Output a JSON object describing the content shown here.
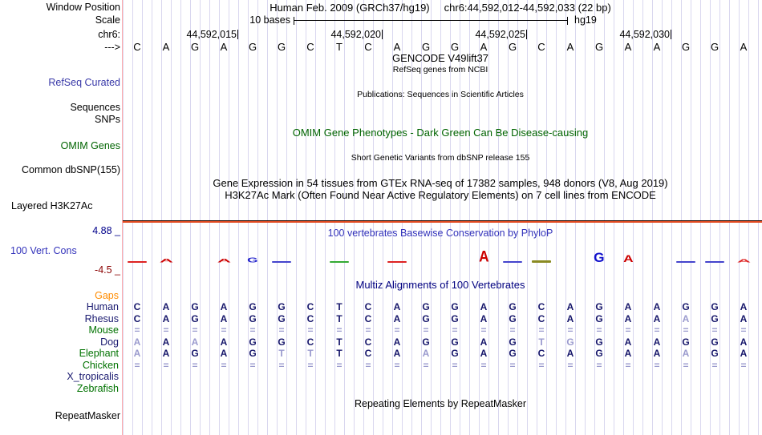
{
  "header": {
    "window_position_label": "Window Position",
    "assembly_title": "Human Feb. 2009 (GRCh37/hg19)",
    "position_title": "chr6:44,592,012-44,592,033 (22 bp)",
    "scale_label": "Scale",
    "scale_text": "10 bases",
    "genome_label": "hg19",
    "chrom_label": "chr6:",
    "coordinates": [
      "44,592,015",
      "44,592,020",
      "44,592,025",
      "44,592,030"
    ],
    "strand_label": "--->"
  },
  "sequence": {
    "bases": [
      "C",
      "A",
      "G",
      "A",
      "G",
      "G",
      "C",
      "T",
      "C",
      "A",
      "G",
      "G",
      "A",
      "G",
      "C",
      "A",
      "G",
      "A",
      "A",
      "G",
      "G",
      "A"
    ]
  },
  "tracks": {
    "gencode": {
      "title": "GENCODE V49lift37",
      "subtitle": "RefSeq genes from NCBI",
      "label": "RefSeq Curated"
    },
    "publications": {
      "title": "Publications: Sequences in Scientific Articles",
      "label_sequences": "Sequences",
      "label_snps": "SNPs"
    },
    "omim": {
      "title": "OMIM Gene Phenotypes - Dark Green Can Be Disease-causing",
      "label": "OMIM Genes"
    },
    "dbsnp": {
      "title": "Short Genetic Variants from dbSNP release 155",
      "label": "Common dbSNP(155)"
    },
    "gtex": {
      "title": "Gene Expression in 54 tissues from GTEx RNA-seq of 17382 samples, 948 donors (V8, Aug 2019)"
    },
    "h3k27ac": {
      "title": "H3K27Ac Mark (Often Found Near Active Regulatory Elements) on 7 cell lines from ENCODE",
      "label": "Layered H3K27Ac"
    },
    "conservation": {
      "title": "100 vertebrates Basewise Conservation by PhyloP",
      "label": "100 Vert. Cons",
      "max_value": "4.88 _",
      "min_value": "-4.5 _",
      "logo": [
        {
          "col": 1,
          "glyph": "bar",
          "color": "#dd2222",
          "h": 2
        },
        {
          "col": 2,
          "glyph": "letter",
          "letter": "A",
          "color": "#cc0000",
          "h": 5
        },
        {
          "col": 4,
          "glyph": "letter",
          "letter": "A",
          "color": "#cc0000",
          "h": 5
        },
        {
          "col": 5,
          "glyph": "letter",
          "letter": "G",
          "color": "#2222cc",
          "h": 6
        },
        {
          "col": 6,
          "glyph": "bar",
          "color": "#4444cc",
          "h": 2
        },
        {
          "col": 8,
          "glyph": "bar",
          "color": "#33aa33",
          "h": 2
        },
        {
          "col": 10,
          "glyph": "bar",
          "color": "#dd2222",
          "h": 2
        },
        {
          "col": 13,
          "glyph": "letter",
          "letter": "A",
          "color": "#cc0000",
          "h": 14
        },
        {
          "col": 14,
          "glyph": "bar",
          "color": "#4444cc",
          "h": 2
        },
        {
          "col": 15,
          "glyph": "bar",
          "color": "#8a8a22",
          "h": 3
        },
        {
          "col": 17,
          "glyph": "letter",
          "letter": "G",
          "color": "#1111cc",
          "h": 12
        },
        {
          "col": 18,
          "glyph": "letter",
          "letter": "A",
          "color": "#cc0000",
          "h": 9
        },
        {
          "col": 20,
          "glyph": "bar",
          "color": "#4444cc",
          "h": 2
        },
        {
          "col": 21,
          "glyph": "bar",
          "color": "#4444cc",
          "h": 2
        },
        {
          "col": 22,
          "glyph": "letter",
          "letter": "A",
          "color": "#dd2222",
          "h": 4
        }
      ]
    },
    "multiz": {
      "title": "Multiz Alignments of 100 Vertebrates",
      "gaps_label": "Gaps",
      "rows": [
        {
          "label": "Gaps",
          "label_color": "orange",
          "cells": [],
          "light": []
        },
        {
          "label": "Human",
          "label_color": "navy",
          "cells": [
            "C",
            "A",
            "G",
            "A",
            "G",
            "G",
            "C",
            "T",
            "C",
            "A",
            "G",
            "G",
            "A",
            "G",
            "C",
            "A",
            "G",
            "A",
            "A",
            "G",
            "G",
            "A"
          ],
          "light": []
        },
        {
          "label": "Rhesus",
          "label_color": "navy",
          "cells": [
            "C",
            "A",
            "G",
            "A",
            "G",
            "G",
            "C",
            "T",
            "C",
            "A",
            "G",
            "G",
            "A",
            "G",
            "C",
            "A",
            "G",
            "A",
            "A",
            "A",
            "G",
            "A"
          ],
          "light": [
            20
          ]
        },
        {
          "label": "Mouse",
          "label_color": "green",
          "cells": [
            "=",
            "=",
            "=",
            "=",
            "=",
            "=",
            "=",
            "=",
            "=",
            "=",
            "=",
            "=",
            "=",
            "=",
            "=",
            "=",
            "=",
            "=",
            "=",
            "=",
            "=",
            "="
          ],
          "light": []
        },
        {
          "label": "Dog",
          "label_color": "navy",
          "cells": [
            "A",
            "A",
            "A",
            "A",
            "G",
            "G",
            "C",
            "T",
            "C",
            "A",
            "G",
            "G",
            "A",
            "G",
            "T",
            "G",
            "G",
            "A",
            "A",
            "G",
            "G",
            "A"
          ],
          "light": [
            1,
            3,
            15,
            16
          ]
        },
        {
          "label": "Elephant",
          "label_color": "green",
          "cells": [
            "A",
            "A",
            "G",
            "A",
            "G",
            "T",
            "T",
            "T",
            "C",
            "A",
            "A",
            "G",
            "A",
            "G",
            "C",
            "A",
            "G",
            "A",
            "A",
            "A",
            "G",
            "A"
          ],
          "light": [
            1,
            6,
            7,
            11,
            20
          ]
        },
        {
          "label": "Chicken",
          "label_color": "green",
          "cells": [
            "=",
            "=",
            "=",
            "=",
            "=",
            "=",
            "=",
            "=",
            "=",
            "=",
            "=",
            "=",
            "=",
            "=",
            "=",
            "=",
            "=",
            "=",
            "=",
            "=",
            "=",
            "="
          ],
          "light": []
        },
        {
          "label": "X_tropicalis",
          "label_color": "navy",
          "cells": [],
          "light": []
        },
        {
          "label": "Zebrafish",
          "label_color": "green",
          "cells": [],
          "light": []
        }
      ]
    },
    "repeatmasker": {
      "title": "Repeating Elements by RepeatMasker",
      "label": "RepeatMasker"
    }
  },
  "colors": {
    "gridline": "#d9d7ef",
    "window_edge_pink": "#ffabab",
    "align_dark": "#16166b",
    "align_light": "#9a9ace",
    "label_navy": "#1a1a70",
    "label_green": "#007200",
    "gaps_orange": "#ff8c00",
    "omim_green": "#006400",
    "refseq_blue": "#3838a8",
    "conservation_blue": "#3333bb",
    "multiz_navy": "#000080",
    "max_navy": "#00008b",
    "min_darkred": "#8b0000",
    "h3k27ac_band": "#e0491f"
  }
}
